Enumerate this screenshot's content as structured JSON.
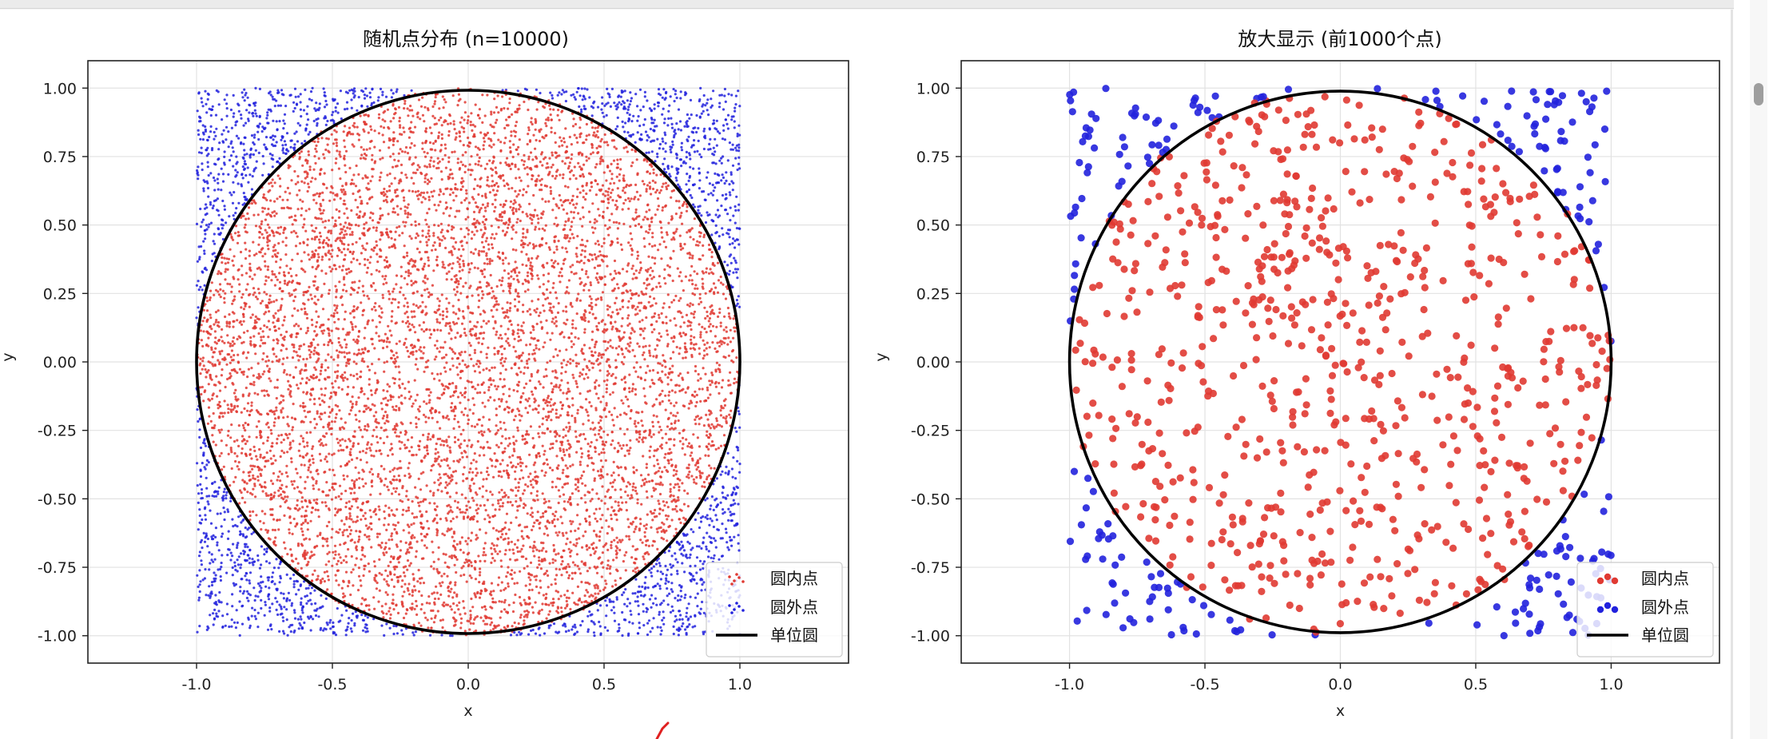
{
  "colors": {
    "inside": "#e03a32",
    "outside": "#2222dd",
    "circle": "#000000",
    "grid": "#e2e2e2"
  },
  "chart_data": [
    {
      "type": "scatter",
      "title": "随机点分布 (n=10000)",
      "xlabel": "x",
      "ylabel": "y",
      "n_points": 10000,
      "xlim": [
        -1.4,
        1.4
      ],
      "ylim": [
        -1.1,
        1.1
      ],
      "xticks": [
        -1.0,
        -0.5,
        0.0,
        0.5,
        1.0
      ],
      "xtick_labels": [
        "-1.0",
        "-0.5",
        "0.0",
        "0.5",
        "1.0"
      ],
      "yticks": [
        1.0,
        0.75,
        0.5,
        0.25,
        0.0,
        -0.25,
        -0.5,
        -0.75,
        -1.0
      ],
      "ytick_labels": [
        "1.00",
        "0.75",
        "0.50",
        "0.25",
        "0.00",
        "-0.25",
        "-0.50",
        "-0.75",
        "-1.00"
      ],
      "grid": true,
      "series": [
        {
          "name": "圆内点",
          "color": "#e03a32",
          "region": "inside unit circle"
        },
        {
          "name": "圆外点",
          "color": "#2222dd",
          "region": "outside unit circle"
        },
        {
          "name": "单位圆",
          "type": "line",
          "color": "#000000",
          "radius": 1
        }
      ],
      "legend": [
        "圆内点",
        "圆外点",
        "单位圆"
      ],
      "legend_loc": "lower-right"
    },
    {
      "type": "scatter",
      "title": "放大显示 (前1000个点)",
      "xlabel": "x",
      "ylabel": "y",
      "n_points": 1000,
      "xlim": [
        -1.4,
        1.4
      ],
      "ylim": [
        -1.1,
        1.1
      ],
      "xticks": [
        -1.0,
        -0.5,
        0.0,
        0.5,
        1.0
      ],
      "xtick_labels": [
        "-1.0",
        "-0.5",
        "0.0",
        "0.5",
        "1.0"
      ],
      "yticks": [
        1.0,
        0.75,
        0.5,
        0.25,
        0.0,
        -0.25,
        -0.5,
        -0.75,
        -1.0
      ],
      "ytick_labels": [
        "1.00",
        "0.75",
        "0.50",
        "0.25",
        "0.00",
        "-0.25",
        "-0.50",
        "-0.75",
        "-1.00"
      ],
      "grid": true,
      "series": [
        {
          "name": "圆内点",
          "color": "#e03a32",
          "region": "inside unit circle"
        },
        {
          "name": "圆外点",
          "color": "#2222dd",
          "region": "outside unit circle"
        },
        {
          "name": "单位圆",
          "type": "line",
          "color": "#000000",
          "radius": 1
        }
      ],
      "legend": [
        "圆内点",
        "圆外点",
        "单位圆"
      ],
      "legend_loc": "lower-right"
    }
  ]
}
